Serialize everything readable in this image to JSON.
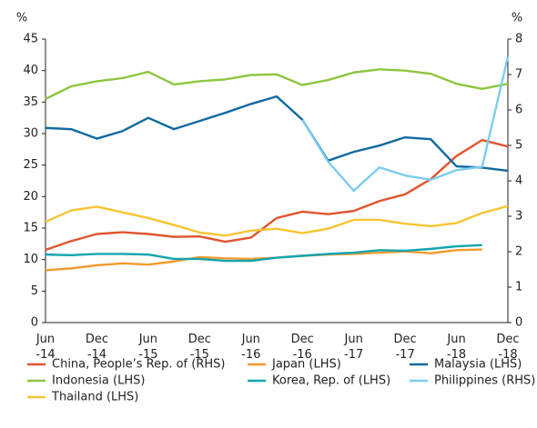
{
  "chart_data": {
    "type": "line",
    "ylabel": "%",
    "y2label": "%",
    "categories": [
      "Jun -14",
      null,
      "Dec -14",
      null,
      "Jun -15",
      null,
      "Dec -15",
      null,
      "Jun -16",
      null,
      "Dec -16",
      null,
      "Jun -17",
      null,
      "Dec -17",
      null,
      "Jun -18",
      null,
      "Dec -18"
    ],
    "ylim": [
      0,
      45
    ],
    "yticks": [
      0,
      5,
      10,
      15,
      20,
      25,
      30,
      35,
      40,
      45
    ],
    "y2lim": [
      0,
      8
    ],
    "y2ticks": [
      0,
      1,
      2,
      3,
      4,
      5,
      6,
      7,
      8
    ],
    "legend": "bottom",
    "series": [
      {
        "name": "China, People’s Rep. of (RHS)",
        "color": "#e0562e",
        "axis": "y2",
        "values": [
          2.05,
          2.3,
          2.5,
          2.55,
          2.5,
          2.42,
          2.43,
          2.28,
          2.4,
          2.95,
          3.13,
          3.06,
          3.15,
          3.43,
          3.62,
          4.05,
          4.7,
          5.15,
          4.97
        ]
      },
      {
        "name": "Japan (LHS)",
        "color": "#f29a2e",
        "values": [
          8.3,
          8.6,
          9.1,
          9.4,
          9.2,
          9.7,
          10.4,
          10.2,
          10.1,
          10.3,
          10.6,
          10.8,
          10.9,
          11.1,
          11.3,
          11.0,
          11.5,
          11.6,
          null
        ]
      },
      {
        "name": "Malaysia (LHS)",
        "color": "#0f6a9e",
        "values": [
          30.9,
          30.7,
          29.2,
          30.4,
          32.5,
          30.7,
          32.0,
          33.3,
          34.7,
          35.9,
          32.2,
          25.7,
          27.1,
          28.1,
          29.4,
          29.1,
          24.8,
          24.6,
          24.1
        ]
      },
      {
        "name": "Indonesia (LHS)",
        "color": "#8dc63f",
        "values": [
          35.5,
          37.5,
          38.3,
          38.8,
          39.8,
          37.8,
          38.3,
          38.6,
          39.3,
          39.4,
          37.7,
          38.5,
          39.7,
          40.2,
          40.0,
          39.5,
          37.9,
          37.1,
          37.9
        ]
      },
      {
        "name": "Korea, Rep. of (LHS)",
        "color": "#13a5b0",
        "values": [
          10.8,
          10.7,
          10.9,
          10.9,
          10.8,
          10.1,
          10.1,
          9.8,
          9.8,
          10.3,
          10.6,
          10.9,
          11.1,
          11.5,
          11.4,
          11.7,
          12.1,
          12.3,
          null
        ]
      },
      {
        "name": "Philippines (RHS)",
        "color": "#7ccdf0",
        "axis": "y2",
        "values": [
          null,
          null,
          null,
          null,
          null,
          null,
          null,
          null,
          null,
          null,
          5.72,
          4.54,
          3.72,
          4.38,
          4.15,
          4.03,
          4.3,
          4.4,
          7.5
        ]
      },
      {
        "name": "Thailand (LHS)",
        "color": "#f7c531",
        "values": [
          16.0,
          17.8,
          18.4,
          17.5,
          16.6,
          15.5,
          14.3,
          13.8,
          14.6,
          14.9,
          14.2,
          14.9,
          16.3,
          16.3,
          15.7,
          15.3,
          15.8,
          17.4,
          18.5
        ]
      }
    ]
  }
}
